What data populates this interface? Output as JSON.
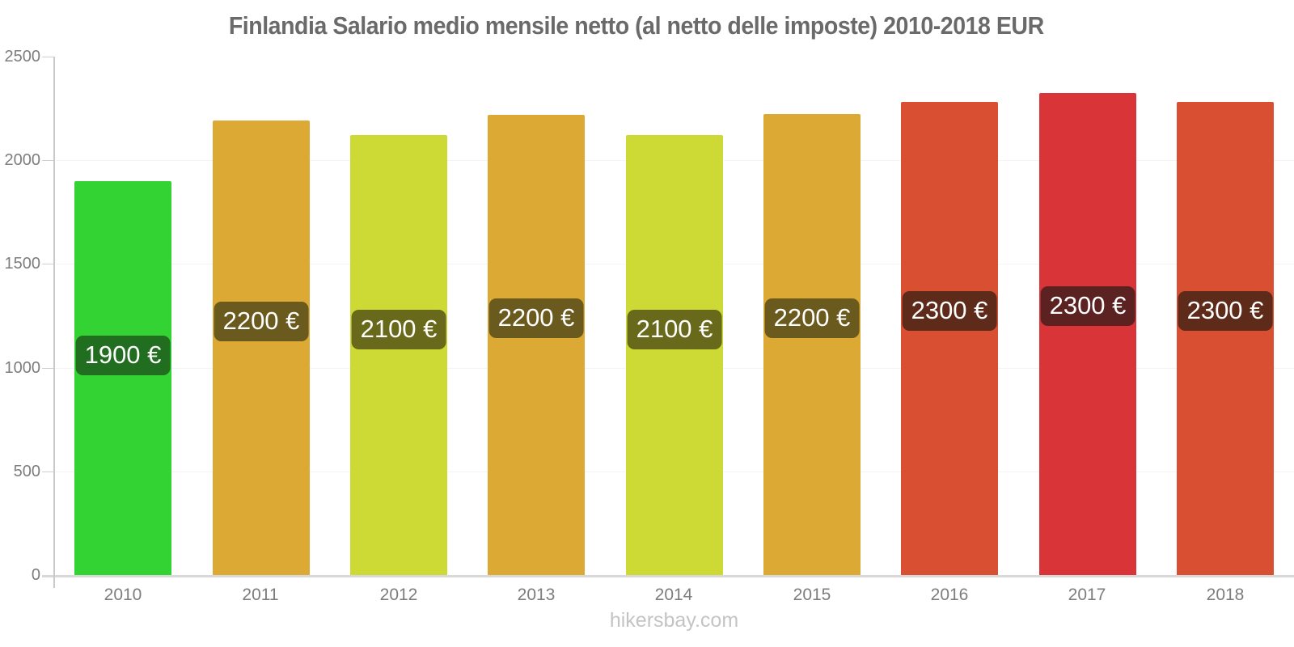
{
  "page": {
    "title": "Finlandia Salario medio mensile netto (al netto delle imposte) 2010-2018 EUR"
  },
  "footer": {
    "text": "hikersbay.com"
  },
  "chart_data": {
    "type": "bar",
    "title": "Finlandia Salario medio mensile netto (al netto delle imposte) 2010-2018 EUR",
    "categories": [
      "2010",
      "2011",
      "2012",
      "2013",
      "2014",
      "2015",
      "2016",
      "2017",
      "2018"
    ],
    "values": [
      1900,
      2200,
      2100,
      2200,
      2100,
      2200,
      2300,
      2300,
      2300
    ],
    "bar_top_values": [
      1900,
      2190,
      2120,
      2220,
      2120,
      2225,
      2280,
      2325,
      2280
    ],
    "labels": [
      "1900 €",
      "2200 €",
      "2100 €",
      "2200 €",
      "2100 €",
      "2200 €",
      "2300 €",
      "2300 €",
      "2300 €"
    ],
    "bar_colors": [
      "#34d334",
      "#dcaa34",
      "#cdda36",
      "#dcaa34",
      "#cdda36",
      "#dcaa34",
      "#d94f31",
      "#d93538",
      "#d94f31"
    ],
    "badge_colors": [
      "#216e21",
      "#6b5a1e",
      "#69691b",
      "#6b5a1e",
      "#69691b",
      "#6b5a1e",
      "#5e2a19",
      "#5c2222",
      "#5e2a19"
    ],
    "ylim": [
      0,
      2500
    ],
    "yticks": [
      0,
      500,
      1000,
      1500,
      2000,
      2500
    ],
    "xlabel": "",
    "ylabel": "",
    "currency": "EUR",
    "grid": true,
    "legend": false,
    "watermark": "hikersbay.com"
  }
}
